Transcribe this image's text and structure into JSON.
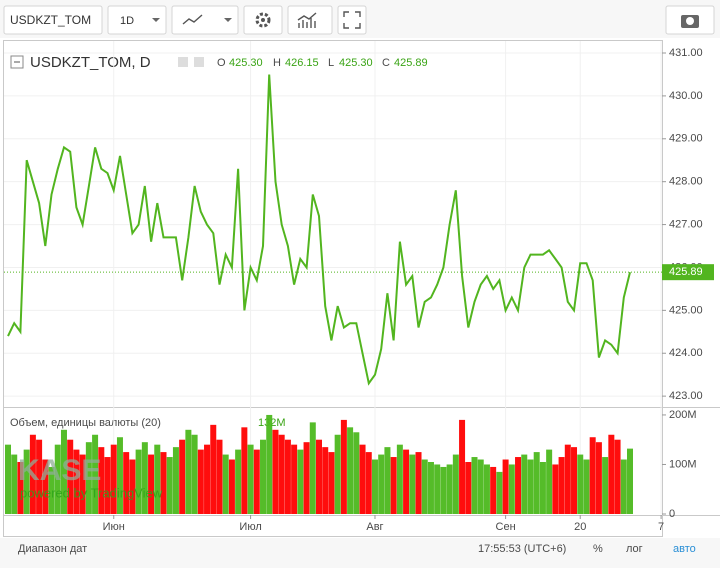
{
  "toolbar": {
    "symbol": "USDKZT_TOM",
    "interval": "1D"
  },
  "legend": {
    "symbol": "USDKZT_TOM, D",
    "open_label": "O",
    "open": "425.30",
    "high_label": "H",
    "high": "426.15",
    "low_label": "L",
    "low": "425.30",
    "close_label": "C",
    "close": "425.89"
  },
  "volume_legend": {
    "title": "Объем, единицы валюты (20)",
    "value": "132M"
  },
  "watermark": {
    "logo": "KASE",
    "tagline": "powered by TradingView"
  },
  "status_bar": {
    "date_range": "Диапазон дат",
    "time": "17:55:53 (UTC+6)",
    "percent": "%",
    "log": "лог",
    "auto": "авто"
  },
  "chart_data": [
    {
      "type": "line",
      "color": "#52b51f",
      "values": [
        424.4,
        424.7,
        424.5,
        428.5,
        428.0,
        427.5,
        426.5,
        427.7,
        428.3,
        428.8,
        428.7,
        427.4,
        427.0,
        427.9,
        428.8,
        428.3,
        428.2,
        427.8,
        428.6,
        427.7,
        426.8,
        427.0,
        427.9,
        426.6,
        427.5,
        426.7,
        426.7,
        426.7,
        425.7,
        426.7,
        427.9,
        427.3,
        427.0,
        426.8,
        425.6,
        426.3,
        426.0,
        428.3,
        425.0,
        426.0,
        425.7,
        426.5,
        430.5,
        428.0,
        427.0,
        426.5,
        425.6,
        426.2,
        426.0,
        427.7,
        427.2,
        425.1,
        424.3,
        425.1,
        424.6,
        424.7,
        424.7,
        424.0,
        423.3,
        423.5,
        424.1,
        425.4,
        424.3,
        426.6,
        425.6,
        425.8,
        424.6,
        425.2,
        425.3,
        425.6,
        426.0,
        427.0,
        427.8,
        425.8,
        424.6,
        425.2,
        425.6,
        425.8,
        425.5,
        425.7,
        425.0,
        425.3,
        425.0,
        426.0,
        426.3,
        426.3,
        426.3,
        426.4,
        426.2,
        426.0,
        425.2,
        425.0,
        426.1,
        426.1,
        425.7,
        423.9,
        424.3,
        424.2,
        424.0,
        425.3,
        425.89
      ],
      "last_value": 425.89,
      "ylim": [
        422.77,
        431.28
      ],
      "yticks": [
        {
          "value": 423,
          "label": "423.00"
        },
        {
          "value": 424,
          "label": "424.00"
        },
        {
          "value": 425,
          "label": "425.00"
        },
        {
          "value": 426,
          "label": "426.00"
        },
        {
          "value": 427,
          "label": "427.00"
        },
        {
          "value": 428,
          "label": "428.00"
        },
        {
          "value": 429,
          "label": "429.00"
        },
        {
          "value": 430,
          "label": "430.00"
        },
        {
          "value": 431,
          "label": "431.00"
        }
      ],
      "xticks": [
        {
          "value": 17,
          "label": "Июн"
        },
        {
          "value": 39,
          "label": "Июл"
        },
        {
          "value": 59,
          "label": "Авг"
        },
        {
          "value": 80,
          "label": "Сен"
        },
        {
          "value": 92,
          "label": "20"
        },
        {
          "value": 105,
          "label": "7"
        }
      ],
      "grid": true
    },
    {
      "type": "bar",
      "values": [
        140,
        120,
        105,
        130,
        160,
        150,
        110,
        95,
        140,
        170,
        150,
        130,
        120,
        145,
        160,
        135,
        115,
        140,
        155,
        125,
        110,
        130,
        145,
        120,
        140,
        125,
        115,
        135,
        150,
        170,
        160,
        130,
        140,
        180,
        150,
        120,
        110,
        130,
        175,
        140,
        130,
        150,
        200,
        170,
        160,
        150,
        140,
        130,
        145,
        185,
        150,
        135,
        125,
        160,
        190,
        175,
        165,
        140,
        125,
        110,
        120,
        135,
        115,
        140,
        130,
        120,
        125,
        110,
        105,
        100,
        95,
        100,
        120,
        190,
        105,
        115,
        110,
        100,
        95,
        85,
        110,
        100,
        115,
        120,
        110,
        125,
        105,
        130,
        100,
        115,
        140,
        135,
        120,
        110,
        155,
        145,
        115,
        160,
        150,
        110,
        132
      ],
      "colors": [
        "#4cb81e",
        "#4cb81e",
        "#ff0000",
        "#4cb81e",
        "#ff0000",
        "#ff0000",
        "#ff0000",
        "#4cb81e",
        "#4cb81e",
        "#4cb81e",
        "#ff0000",
        "#ff0000",
        "#ff0000",
        "#4cb81e",
        "#4cb81e",
        "#ff0000",
        "#ff0000",
        "#ff0000",
        "#4cb81e",
        "#ff0000",
        "#ff0000",
        "#4cb81e",
        "#4cb81e",
        "#ff0000",
        "#4cb81e",
        "#ff0000",
        "#4cb81e",
        "#4cb81e",
        "#ff0000",
        "#4cb81e",
        "#4cb81e",
        "#ff0000",
        "#ff0000",
        "#ff0000",
        "#ff0000",
        "#4cb81e",
        "#ff0000",
        "#4cb81e",
        "#ff0000",
        "#4cb81e",
        "#ff0000",
        "#4cb81e",
        "#4cb81e",
        "#ff0000",
        "#ff0000",
        "#ff0000",
        "#ff0000",
        "#4cb81e",
        "#ff0000",
        "#4cb81e",
        "#ff0000",
        "#ff0000",
        "#ff0000",
        "#4cb81e",
        "#ff0000",
        "#4cb81e",
        "#4cb81e",
        "#ff0000",
        "#ff0000",
        "#4cb81e",
        "#4cb81e",
        "#4cb81e",
        "#ff0000",
        "#4cb81e",
        "#ff0000",
        "#4cb81e",
        "#ff0000",
        "#4cb81e",
        "#4cb81e",
        "#4cb81e",
        "#4cb81e",
        "#4cb81e",
        "#4cb81e",
        "#ff0000",
        "#ff0000",
        "#4cb81e",
        "#4cb81e",
        "#4cb81e",
        "#ff0000",
        "#4cb81e",
        "#ff0000",
        "#4cb81e",
        "#ff0000",
        "#4cb81e",
        "#4cb81e",
        "#4cb81e",
        "#4cb81e",
        "#4cb81e",
        "#ff0000",
        "#ff0000",
        "#ff0000",
        "#ff0000",
        "#4cb81e",
        "#4cb81e",
        "#ff0000",
        "#ff0000",
        "#4cb81e",
        "#ff0000",
        "#ff0000",
        "#4cb81e",
        "#4cb81e"
      ],
      "ylim": [
        0,
        212
      ],
      "yticks": [
        0,
        {
          "value": 100,
          "label": "100M"
        },
        {
          "value": 200,
          "label": "200M"
        }
      ]
    }
  ]
}
